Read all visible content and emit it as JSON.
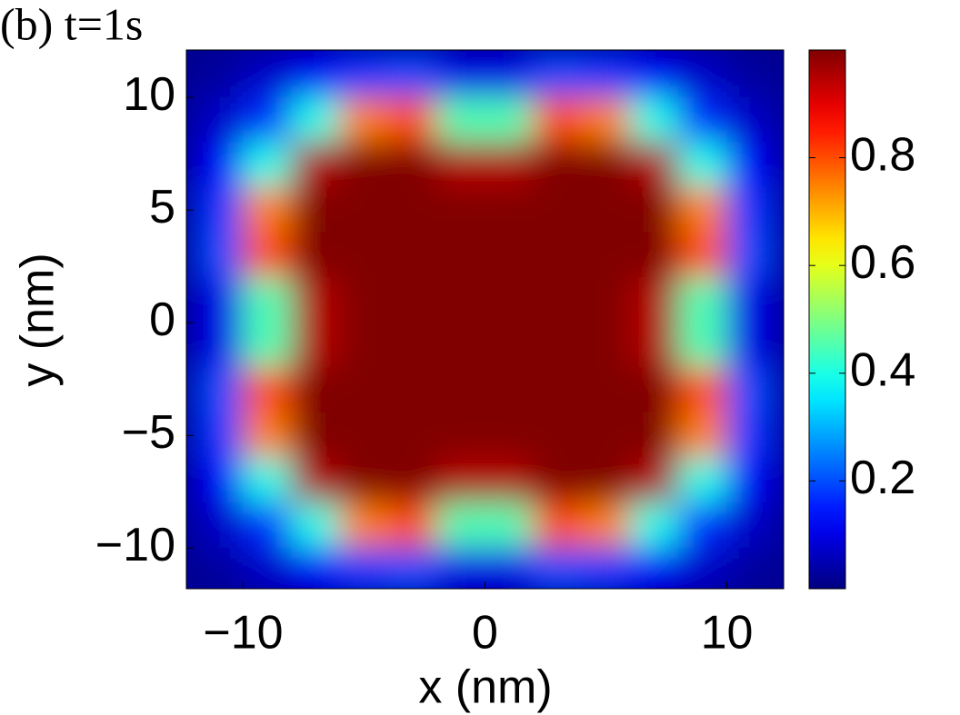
{
  "chart_data": {
    "type": "heatmap",
    "title": "(b) t=1s",
    "xlabel": "x (nm)",
    "ylabel": "y (nm)",
    "x": [
      -11,
      -9,
      -7,
      -5,
      -3,
      -1,
      1,
      3,
      5,
      7,
      9,
      11
    ],
    "y": [
      11,
      9,
      7,
      5,
      3,
      1,
      -1,
      -3,
      -5,
      -7,
      -9,
      -11
    ],
    "z": [
      [
        0.03,
        0.07,
        0.12,
        0.18,
        0.2,
        0.1,
        0.1,
        0.2,
        0.18,
        0.12,
        0.07,
        0.03
      ],
      [
        0.07,
        0.17,
        0.4,
        0.75,
        0.8,
        0.45,
        0.45,
        0.8,
        0.75,
        0.4,
        0.17,
        0.07
      ],
      [
        0.12,
        0.4,
        0.95,
        1,
        1,
        0.95,
        0.95,
        1,
        1,
        0.95,
        0.4,
        0.12
      ],
      [
        0.18,
        0.75,
        1,
        1,
        1,
        1,
        1,
        1,
        1,
        1,
        0.75,
        0.18
      ],
      [
        0.2,
        0.8,
        1,
        1,
        1,
        1,
        1,
        1,
        1,
        1,
        0.8,
        0.2
      ],
      [
        0.1,
        0.45,
        0.95,
        1,
        1,
        1,
        1,
        1,
        1,
        0.95,
        0.45,
        0.1
      ],
      [
        0.1,
        0.45,
        0.95,
        1,
        1,
        1,
        1,
        1,
        1,
        0.95,
        0.45,
        0.1
      ],
      [
        0.2,
        0.8,
        1,
        1,
        1,
        1,
        1,
        1,
        1,
        1,
        0.8,
        0.2
      ],
      [
        0.18,
        0.75,
        1,
        1,
        1,
        1,
        1,
        1,
        1,
        1,
        0.75,
        0.18
      ],
      [
        0.12,
        0.4,
        0.95,
        1,
        1,
        0.95,
        0.95,
        1,
        1,
        0.95,
        0.4,
        0.12
      ],
      [
        0.07,
        0.17,
        0.4,
        0.75,
        0.8,
        0.45,
        0.45,
        0.8,
        0.75,
        0.4,
        0.17,
        0.07
      ],
      [
        0.03,
        0.07,
        0.12,
        0.18,
        0.2,
        0.1,
        0.1,
        0.2,
        0.18,
        0.12,
        0.07,
        0.03
      ]
    ],
    "cell": 2,
    "colormap": "jet",
    "xlim": [
      -12.35,
      12.35
    ],
    "ylim": [
      -11.8,
      12.1
    ],
    "xticks": [
      {
        "value": -10,
        "label": "−10"
      },
      0,
      10
    ],
    "yticks": [
      {
        "value": -10,
        "label": "−10"
      },
      {
        "value": -5,
        "label": "−5"
      },
      0,
      5,
      10
    ],
    "clim": [
      0,
      1
    ],
    "cticks": [
      0.2,
      0.4,
      0.6,
      0.8
    ]
  }
}
